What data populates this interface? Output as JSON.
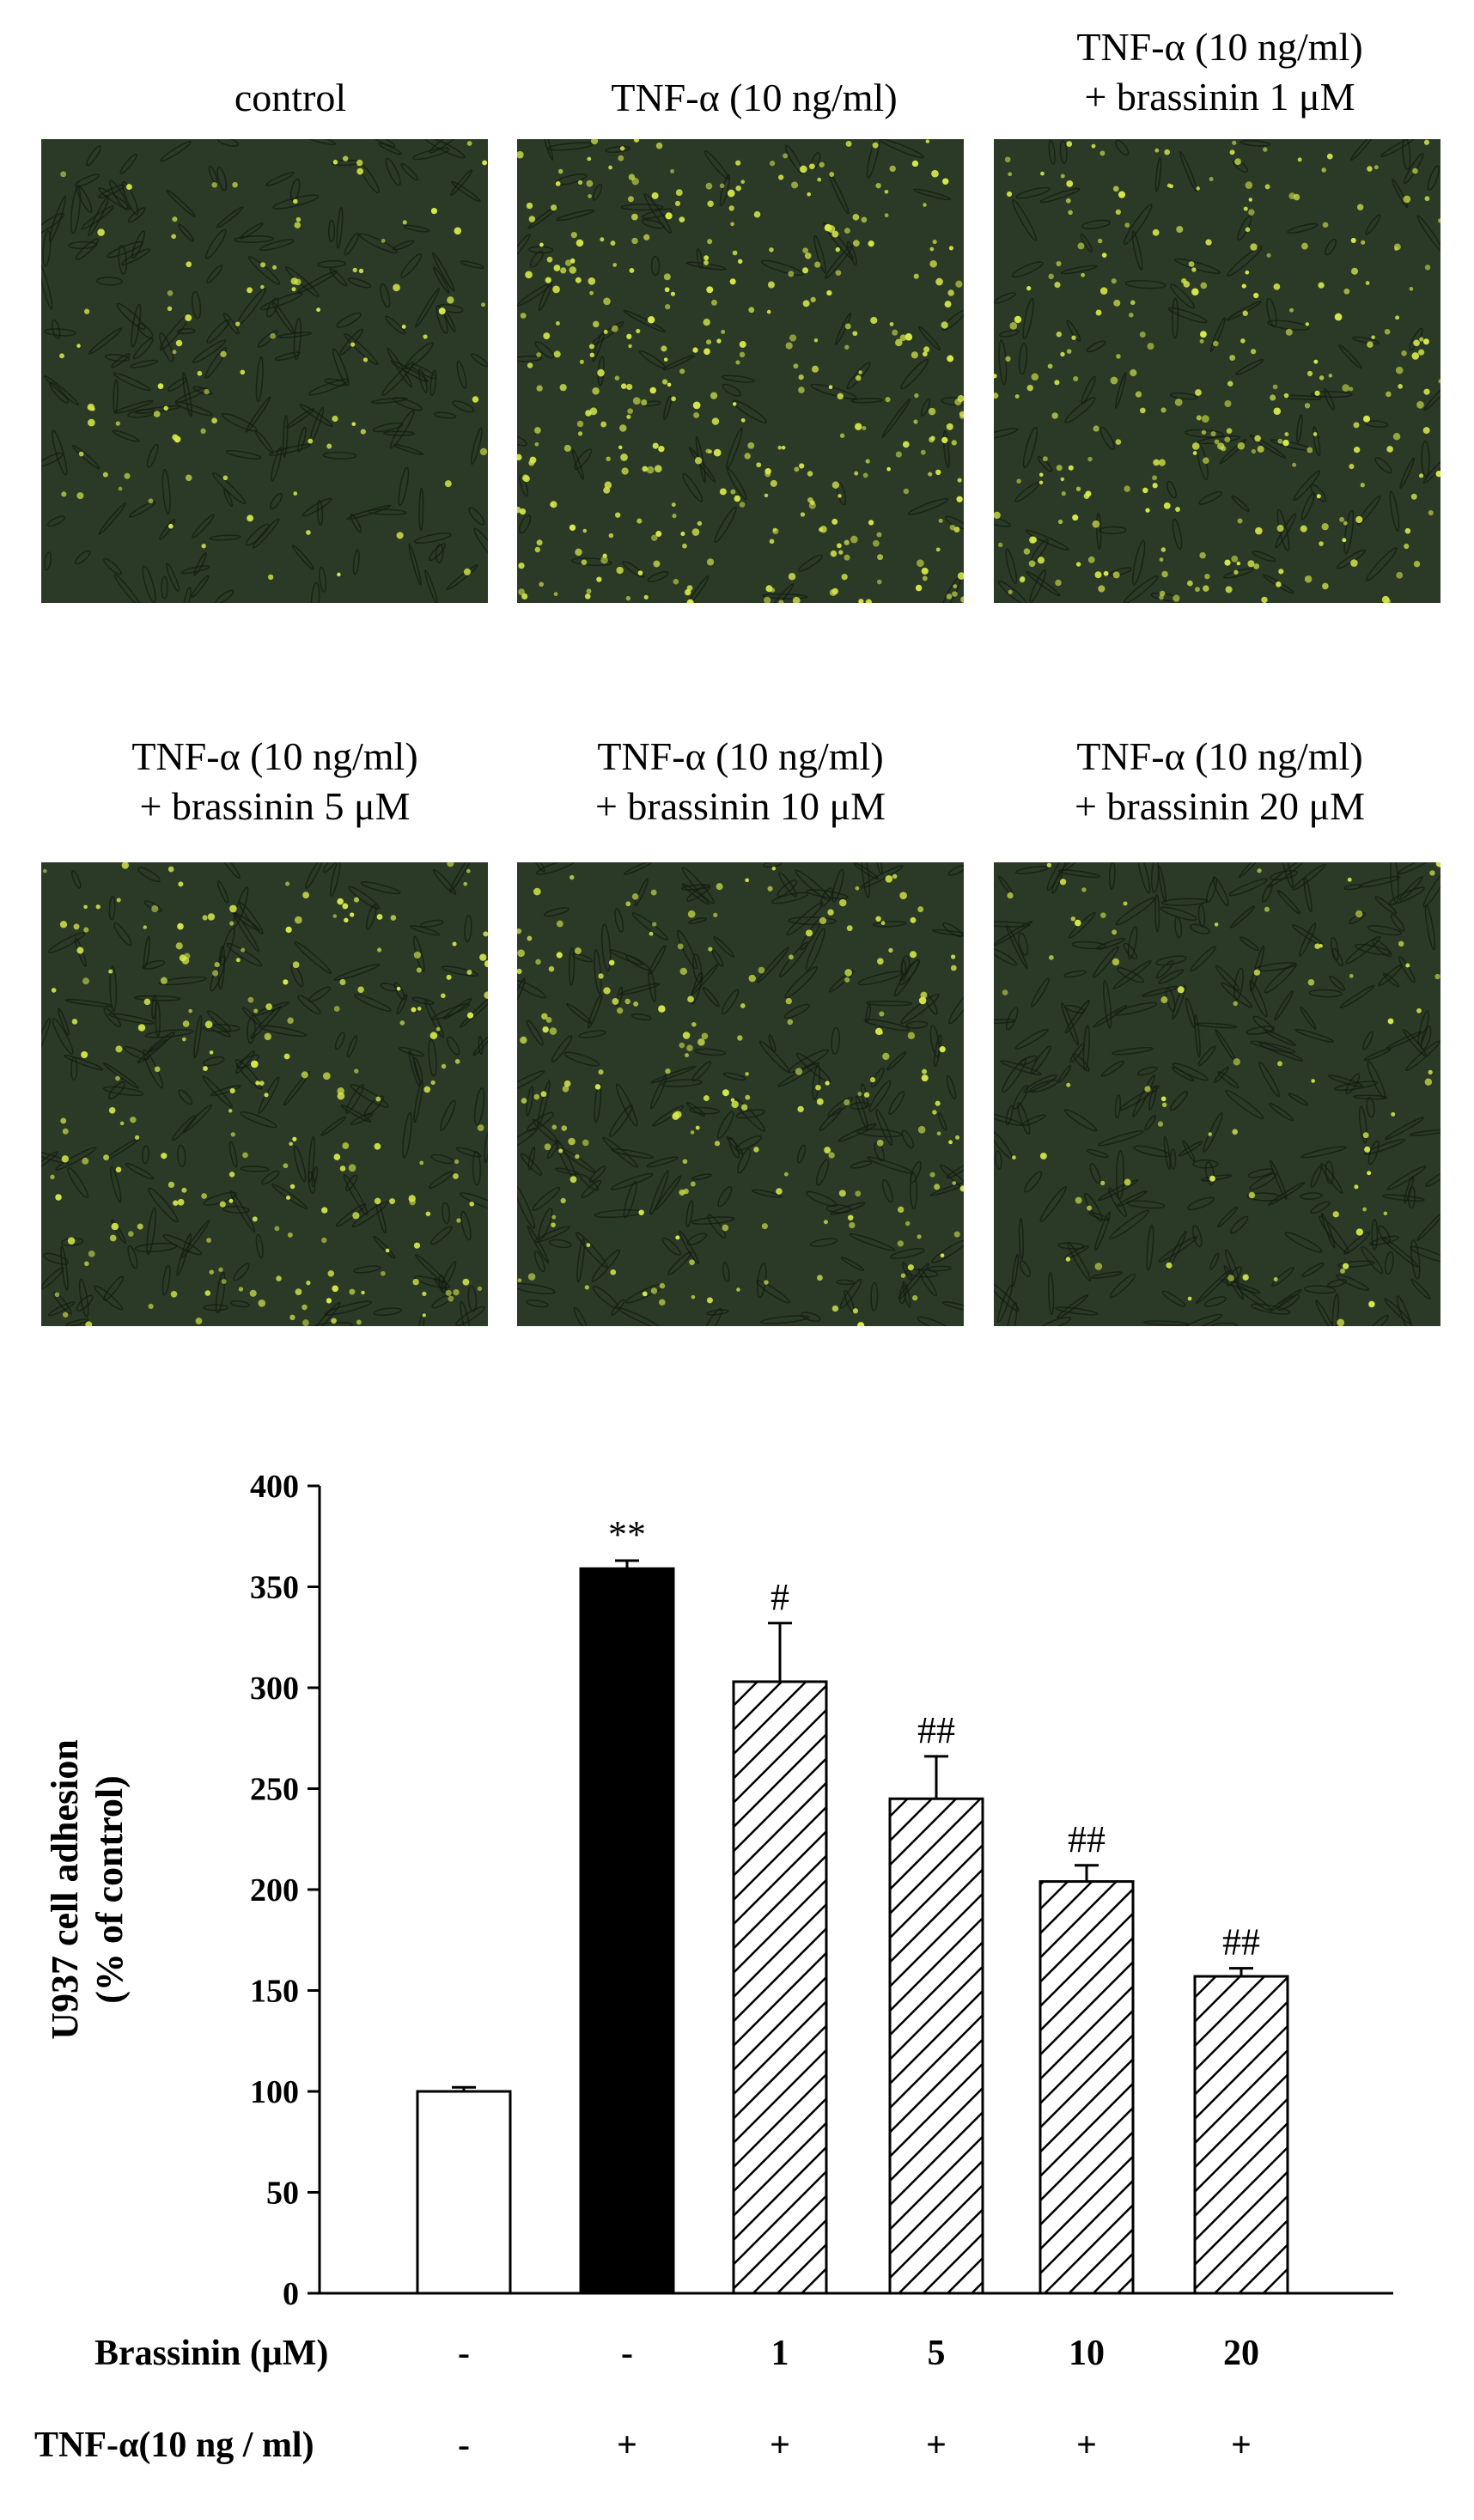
{
  "panels": [
    {
      "title1": "control",
      "title2": "",
      "density": 0.25,
      "cells": 0.75
    },
    {
      "title1": "TNF-α (10 ng/ml)",
      "title2": "",
      "density": 1.0,
      "cells": 0.3
    },
    {
      "title1": "TNF-α (10 ng/ml)",
      "title2": "+ brassinin 1 μM",
      "density": 0.75,
      "cells": 0.4
    },
    {
      "title1": "TNF-α (10 ng/ml)",
      "title2": "+ brassinin 5 μM",
      "density": 0.55,
      "cells": 0.7
    },
    {
      "title1": "TNF-α (10 ng/ml)",
      "title2": "+ brassinin 10 μM",
      "density": 0.5,
      "cells": 0.8
    },
    {
      "title1": "TNF-α (10 ng/ml)",
      "title2": "+ brassinin 20 μM",
      "density": 0.2,
      "cells": 1.0
    }
  ],
  "colors": {
    "micro_bg": "#2b3a27",
    "adhered_cell": "#d8e84a",
    "endothelial": "#141c12"
  },
  "chart_data": {
    "type": "bar",
    "ylabel_line1": "U937 cell adhesion",
    "ylabel_line2": "(% of control)",
    "ylim": [
      0,
      400
    ],
    "yticks": [
      0,
      50,
      100,
      150,
      200,
      250,
      300,
      350,
      400
    ],
    "values": [
      100,
      359,
      303,
      245,
      204,
      157
    ],
    "errors": [
      2,
      4,
      29,
      21,
      8,
      4
    ],
    "fills": [
      "white",
      "black",
      "hatch",
      "hatch",
      "hatch",
      "hatch"
    ],
    "annotations": [
      "",
      "**",
      "#",
      "##",
      "##",
      "##"
    ],
    "row_labels": [
      "Brassinin (μM)",
      "TNF-α(10 ng / ml)"
    ],
    "brassinin_row": [
      "-",
      "-",
      "1",
      "5",
      "10",
      "20"
    ],
    "tnf_row": [
      "-",
      "+",
      "+",
      "+",
      "+",
      "+"
    ]
  }
}
